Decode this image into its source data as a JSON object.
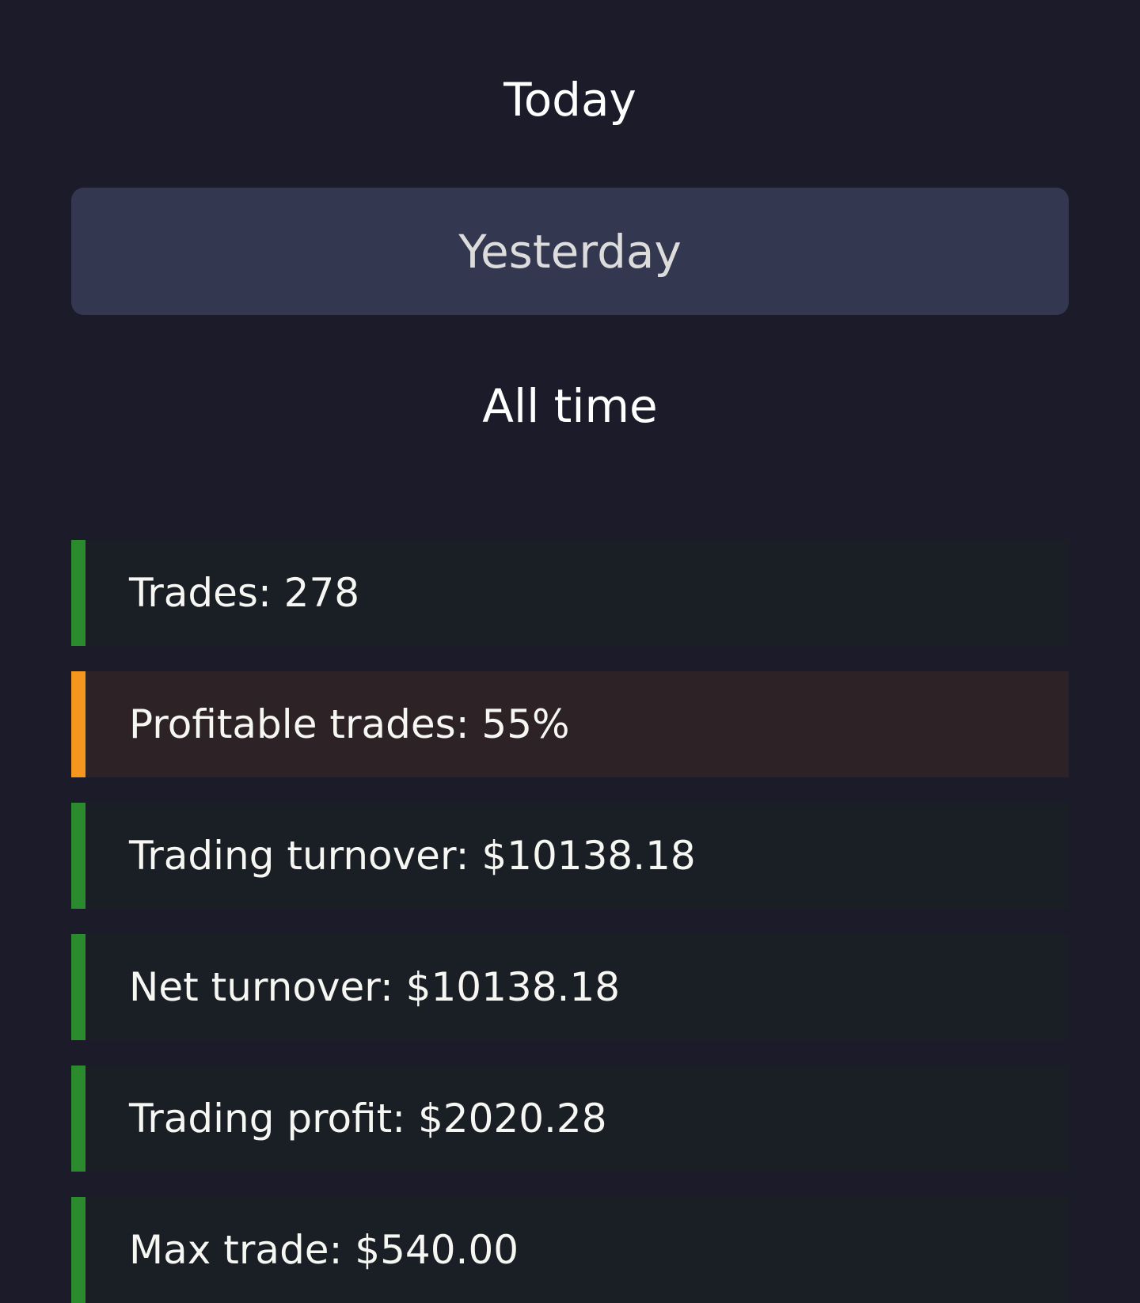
{
  "tabs": [
    {
      "label": "Today",
      "active": false
    },
    {
      "label": "Yesterday",
      "active": true
    },
    {
      "label": "All time",
      "active": false
    }
  ],
  "stats": [
    {
      "label": "Trades: 278",
      "status": "green"
    },
    {
      "label": "Profitable trades: 55%",
      "status": "orange"
    },
    {
      "label": "Trading turnover: $10138.18",
      "status": "green"
    },
    {
      "label": "Net turnover: $10138.18",
      "status": "green"
    },
    {
      "label": "Trading profit: $2020.28",
      "status": "green"
    },
    {
      "label": "Max trade: $540.00",
      "status": "green"
    }
  ],
  "colors": {
    "green": "#2b8a2e",
    "orange": "#f5961f",
    "background": "#1b1b29",
    "active_tab": "#333750"
  }
}
